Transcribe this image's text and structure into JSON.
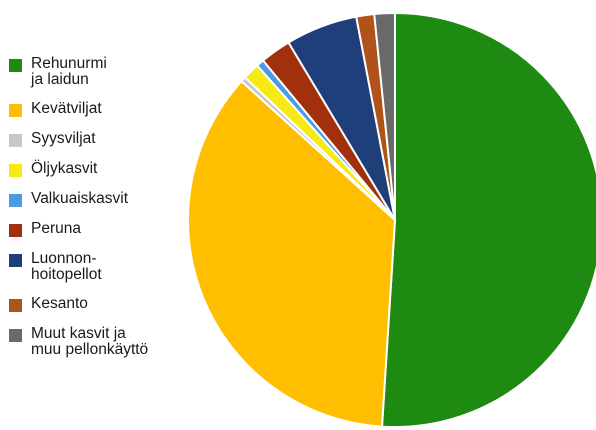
{
  "chart_data": {
    "type": "pie",
    "title": "",
    "legend_position": "left",
    "start_angle_deg": 0,
    "direction": "clockwise",
    "slices": [
      {
        "label": "Rehunurmi\nja laidun",
        "value": 51.0,
        "color": "#1f8a12"
      },
      {
        "label": "Kevätviljat",
        "value": 35.7,
        "color": "#ffbf00"
      },
      {
        "label": "Syysviljat",
        "value": 0.4,
        "color": "#c8c8c8"
      },
      {
        "label": "Öljykasvit",
        "value": 1.3,
        "color": "#f5ea14"
      },
      {
        "label": "Valkuaiskasvit",
        "value": 0.6,
        "color": "#4b9be0"
      },
      {
        "label": "Peruna",
        "value": 2.4,
        "color": "#a3300c"
      },
      {
        "label": "Luonnon-\nhoitopellot",
        "value": 5.6,
        "color": "#1f3f7a"
      },
      {
        "label": "Kesanto",
        "value": 1.4,
        "color": "#b0531a"
      },
      {
        "label": "Muut kasvit ja\nmuu pellonkäyttö",
        "value": 1.6,
        "color": "#6a6a6a"
      }
    ]
  }
}
